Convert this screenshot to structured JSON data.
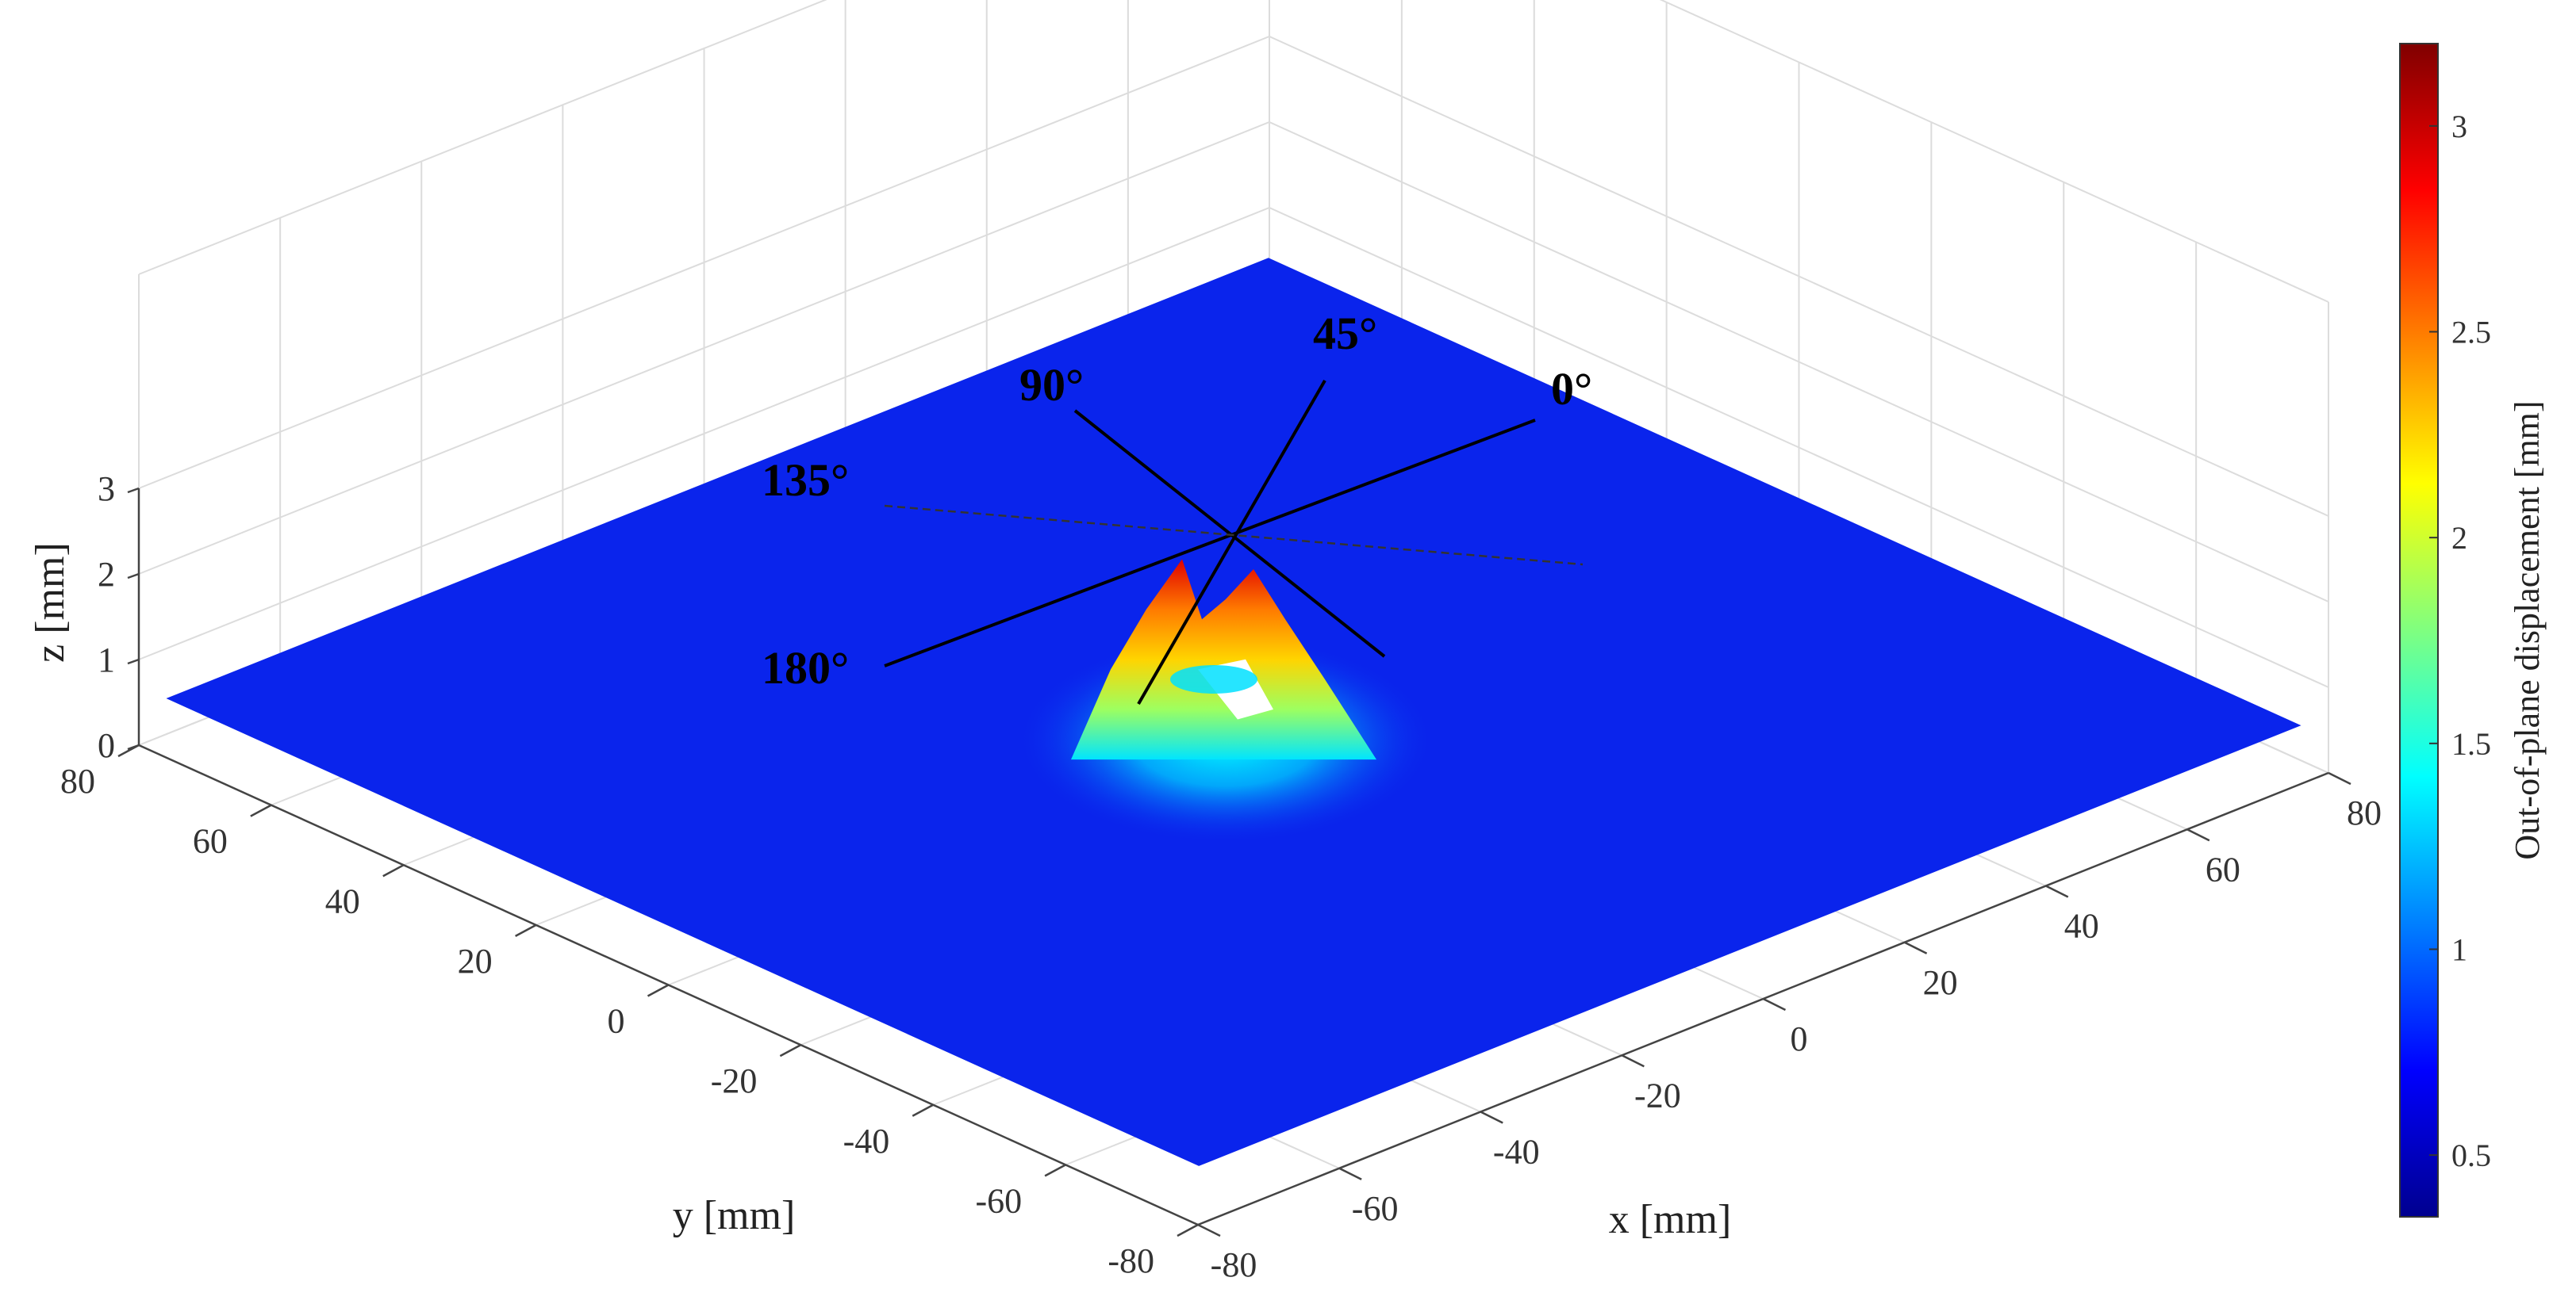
{
  "chart_data": {
    "type": "surface",
    "xlabel": "x [mm]",
    "ylabel": "y [mm]",
    "zlabel": "z [mm]",
    "colorbar_label": "Out-of-plane displacement [mm]",
    "x_ticks": [
      "-80",
      "-60",
      "-40",
      "-20",
      "0",
      "20",
      "40",
      "60",
      "80"
    ],
    "y_ticks": [
      "80",
      "60",
      "40",
      "20",
      "0",
      "-20",
      "-40",
      "-60",
      "-80"
    ],
    "z_ticks": [
      "0",
      "1",
      "2",
      "3"
    ],
    "colorbar_ticks": [
      "0.5",
      "1",
      "1.5",
      "2",
      "2.5",
      "3"
    ],
    "xlim": [
      -80,
      80
    ],
    "ylim": [
      -80,
      80
    ],
    "zlim": [
      0,
      3
    ],
    "clim": [
      0.35,
      3.2
    ],
    "colormap": "jet",
    "grid": true,
    "baseline_displacement": 0.6,
    "peak_displacement": 3.2,
    "angle_labels": [
      "0°",
      "45°",
      "90°",
      "135°",
      "180°"
    ]
  }
}
